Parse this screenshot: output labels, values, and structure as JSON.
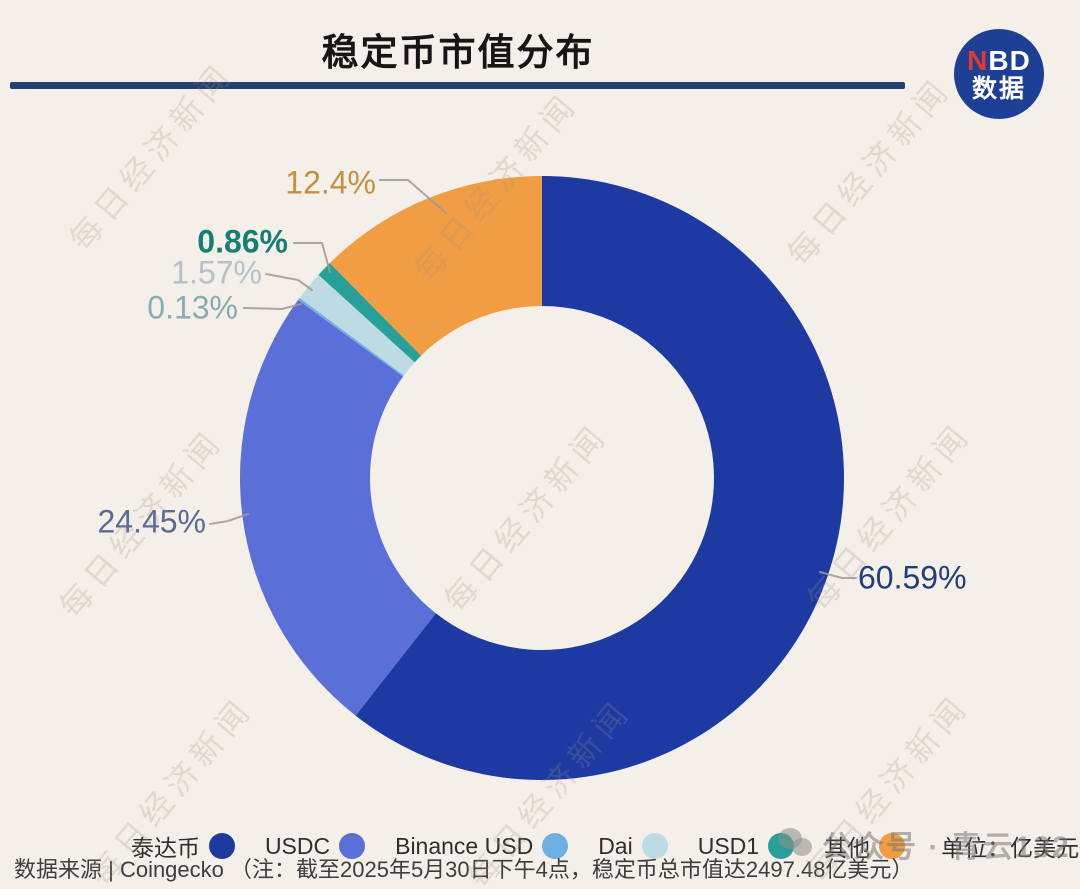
{
  "header": {
    "title": "稳定币市值分布"
  },
  "logo": {
    "line1_red": "N",
    "line1_rest": "BD",
    "line2": "数据"
  },
  "chart_data": {
    "type": "pie",
    "subtype": "donut",
    "title": "稳定币市值分布",
    "unit_note": "单位：亿美元",
    "legend_position": "bottom",
    "start_angle_deg": 0,
    "clockwise": true,
    "series": [
      {
        "name": "泰达币",
        "value": 60.59,
        "label": "60.59%",
        "color": "#1c3aa2",
        "label_color": "#1f3e7c"
      },
      {
        "name": "USDC",
        "value": 24.45,
        "label": "24.45%",
        "color": "#5a70d8",
        "label_color": "#5a6b96"
      },
      {
        "name": "Binance USD",
        "value": 0.13,
        "label": "0.13%",
        "color": "#6fb0e2",
        "label_color": "#87adb4"
      },
      {
        "name": "Dai",
        "value": 1.57,
        "label": "1.57%",
        "color": "#bedae2",
        "label_color": "#b3c2ca"
      },
      {
        "name": "USD1",
        "value": 0.86,
        "label": "0.86%",
        "color": "#28a09a",
        "label_color": "#157f76"
      },
      {
        "name": "其他",
        "value": 12.4,
        "label": "12.4%",
        "color": "#f09d44",
        "label_color": "#c4923f"
      }
    ],
    "total_note": "稳定币总市值达2497.48亿美元"
  },
  "footer": {
    "source_line": "数据来源 | Coingecko （注：截至2025年5月30日下午4点，稳定币总市值达2497.48亿美元）"
  },
  "watermarks": {
    "tile_text": "每日经济新闻",
    "account_text": "公众号 · 青云132"
  },
  "colors": {
    "background": "#f4efe8",
    "title_rule": "#24406f",
    "logo_circle": "#1e3f96",
    "logo_red": "#e23a2d"
  }
}
